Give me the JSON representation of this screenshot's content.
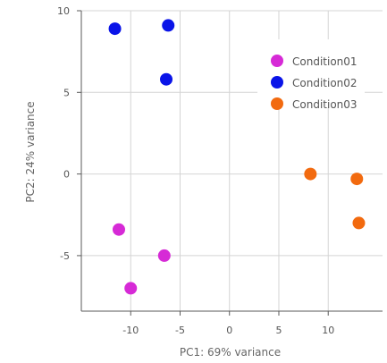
{
  "chart_data": {
    "type": "scatter",
    "xlabel": "PC1: 69% variance",
    "ylabel": "PC2: 24% variance",
    "xlim": [
      -15,
      15.5
    ],
    "ylim": [
      -8.4,
      10
    ],
    "xticks": [
      -10,
      -5,
      0,
      5,
      10
    ],
    "yticks": [
      -5,
      0,
      5,
      10
    ],
    "grid": true,
    "legend_position": "top-right",
    "series": [
      {
        "name": "Condition01",
        "color": "#d62ad6",
        "points": [
          {
            "x": -11.2,
            "y": -3.4
          },
          {
            "x": -6.6,
            "y": -5.0
          },
          {
            "x": -10.0,
            "y": -7.0
          }
        ]
      },
      {
        "name": "Condition02",
        "color": "#0a14e8",
        "points": [
          {
            "x": -11.6,
            "y": 8.9
          },
          {
            "x": -6.2,
            "y": 9.1
          },
          {
            "x": -6.4,
            "y": 5.8
          }
        ]
      },
      {
        "name": "Condition03",
        "color": "#f26a0f",
        "points": [
          {
            "x": 8.2,
            "y": 0.0
          },
          {
            "x": 12.9,
            "y": -0.3
          },
          {
            "x": 13.1,
            "y": -3.0
          }
        ]
      }
    ]
  }
}
